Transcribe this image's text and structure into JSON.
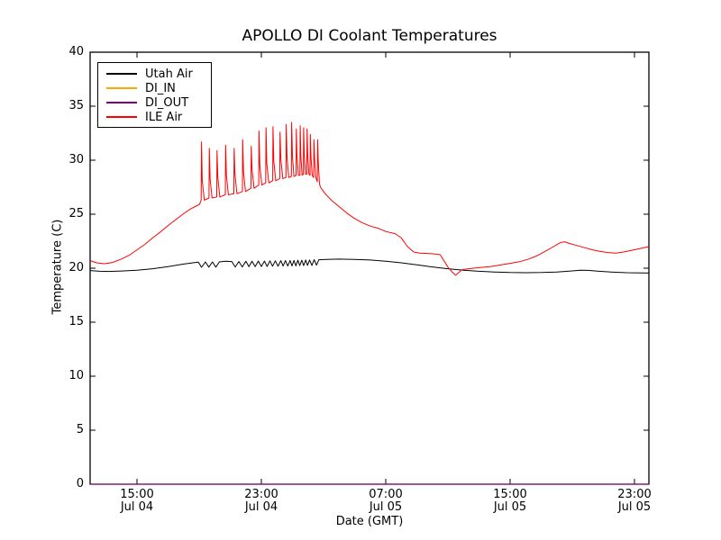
{
  "figure": {
    "background": "#ffffff",
    "spine_color": "#000000"
  },
  "chart_data": {
    "type": "line",
    "title": "APOLLO DI Coolant Temperatures",
    "xlabel": "Date (GMT)",
    "ylabel": "Temperature (C)",
    "ylim": [
      0,
      40
    ],
    "yticks": [
      0,
      5,
      10,
      15,
      20,
      25,
      30,
      35,
      40
    ],
    "x_hours_origin": "Jul 04 00:00 GMT",
    "xlim": [
      11.99,
      47.93
    ],
    "xticks": [
      {
        "t": 15,
        "time": "15:00",
        "date": "Jul 04"
      },
      {
        "t": 23,
        "time": "23:00",
        "date": "Jul 04"
      },
      {
        "t": 31,
        "time": "07:00",
        "date": "Jul 05"
      },
      {
        "t": 39,
        "time": "15:00",
        "date": "Jul 05"
      },
      {
        "t": 47,
        "time": "23:00",
        "date": "Jul 05"
      }
    ],
    "grid": false,
    "legend": {
      "position": "upper-left"
    },
    "series": [
      {
        "name": "Utah Air",
        "color": "#000000",
        "points": [
          [
            11.99,
            19.78
          ],
          [
            12.6,
            19.72
          ],
          [
            13.2,
            19.7
          ],
          [
            14.0,
            19.74
          ],
          [
            15.0,
            19.82
          ],
          [
            16.0,
            19.95
          ],
          [
            17.0,
            20.15
          ],
          [
            18.0,
            20.38
          ],
          [
            18.6,
            20.5
          ],
          [
            18.95,
            20.56
          ],
          [
            19.15,
            20.08
          ],
          [
            19.4,
            20.58
          ],
          [
            19.62,
            20.1
          ],
          [
            19.85,
            20.58
          ],
          [
            20.07,
            20.1
          ],
          [
            20.3,
            20.58
          ],
          [
            20.7,
            20.64
          ],
          [
            21.1,
            20.62
          ],
          [
            21.32,
            20.12
          ],
          [
            21.55,
            20.62
          ],
          [
            21.77,
            20.12
          ],
          [
            22.0,
            20.64
          ],
          [
            22.2,
            20.14
          ],
          [
            22.4,
            20.64
          ],
          [
            22.6,
            20.14
          ],
          [
            22.8,
            20.66
          ],
          [
            23.0,
            20.16
          ],
          [
            23.2,
            20.66
          ],
          [
            23.37,
            20.16
          ],
          [
            23.55,
            20.68
          ],
          [
            23.72,
            20.18
          ],
          [
            23.9,
            20.68
          ],
          [
            24.07,
            20.18
          ],
          [
            24.25,
            20.7
          ],
          [
            24.4,
            20.2
          ],
          [
            24.55,
            20.7
          ],
          [
            24.7,
            20.2
          ],
          [
            24.85,
            20.72
          ],
          [
            24.97,
            20.22
          ],
          [
            25.1,
            20.72
          ],
          [
            25.22,
            20.22
          ],
          [
            25.35,
            20.74
          ],
          [
            25.47,
            20.24
          ],
          [
            25.6,
            20.74
          ],
          [
            25.72,
            20.24
          ],
          [
            25.85,
            20.76
          ],
          [
            25.97,
            20.26
          ],
          [
            26.1,
            20.76
          ],
          [
            26.25,
            20.26
          ],
          [
            26.4,
            20.78
          ],
          [
            26.55,
            20.28
          ],
          [
            26.7,
            20.78
          ],
          [
            27.2,
            20.82
          ],
          [
            28.0,
            20.84
          ],
          [
            29.0,
            20.82
          ],
          [
            30.0,
            20.76
          ],
          [
            31.0,
            20.65
          ],
          [
            32.0,
            20.5
          ],
          [
            33.0,
            20.32
          ],
          [
            34.0,
            20.12
          ],
          [
            35.0,
            19.95
          ],
          [
            36.0,
            19.82
          ],
          [
            37.0,
            19.72
          ],
          [
            38.0,
            19.65
          ],
          [
            39.0,
            19.6
          ],
          [
            40.0,
            19.58
          ],
          [
            41.0,
            19.6
          ],
          [
            42.0,
            19.65
          ],
          [
            43.0,
            19.75
          ],
          [
            43.5,
            19.82
          ],
          [
            44.0,
            19.8
          ],
          [
            44.7,
            19.72
          ],
          [
            45.5,
            19.65
          ],
          [
            46.5,
            19.58
          ],
          [
            47.93,
            19.55
          ]
        ]
      },
      {
        "name": "DI_IN",
        "color": "#ffa500",
        "points": [
          [
            11.99,
            0.0
          ],
          [
            47.93,
            0.0
          ]
        ]
      },
      {
        "name": "DI_OUT",
        "color": "#800080",
        "points": [
          [
            11.99,
            0.0
          ],
          [
            47.93,
            0.0
          ]
        ]
      },
      {
        "name": "ILE Air",
        "color": "#ff0000",
        "points": [
          [
            11.99,
            20.7
          ],
          [
            12.4,
            20.5
          ],
          [
            12.9,
            20.42
          ],
          [
            13.4,
            20.52
          ],
          [
            14.0,
            20.85
          ],
          [
            14.5,
            21.2
          ],
          [
            15.0,
            21.7
          ],
          [
            15.5,
            22.2
          ],
          [
            16.0,
            22.8
          ],
          [
            16.5,
            23.35
          ],
          [
            17.0,
            23.95
          ],
          [
            17.5,
            24.5
          ],
          [
            18.0,
            25.05
          ],
          [
            18.4,
            25.45
          ],
          [
            18.8,
            25.75
          ],
          [
            19.02,
            25.9
          ],
          [
            19.13,
            26.3
          ],
          [
            19.15,
            31.7
          ],
          [
            19.2,
            28.1
          ],
          [
            19.33,
            26.3
          ],
          [
            19.63,
            26.5
          ],
          [
            19.65,
            31.1
          ],
          [
            19.7,
            28.3
          ],
          [
            19.83,
            26.5
          ],
          [
            20.13,
            26.6
          ],
          [
            20.15,
            30.9
          ],
          [
            20.2,
            28.4
          ],
          [
            20.33,
            26.6
          ],
          [
            20.68,
            26.8
          ],
          [
            20.7,
            31.4
          ],
          [
            20.75,
            28.6
          ],
          [
            20.88,
            26.8
          ],
          [
            21.23,
            26.9
          ],
          [
            21.25,
            31.1
          ],
          [
            21.3,
            28.7
          ],
          [
            21.43,
            26.9
          ],
          [
            21.78,
            27.1
          ],
          [
            21.8,
            31.9
          ],
          [
            21.85,
            28.9
          ],
          [
            21.98,
            27.1
          ],
          [
            22.33,
            27.4
          ],
          [
            22.35,
            31.3
          ],
          [
            22.4,
            29.2
          ],
          [
            22.53,
            27.4
          ],
          [
            22.83,
            27.7
          ],
          [
            22.85,
            32.7
          ],
          [
            22.9,
            29.5
          ],
          [
            23.03,
            27.7
          ],
          [
            23.28,
            27.9
          ],
          [
            23.3,
            33.0
          ],
          [
            23.35,
            29.7
          ],
          [
            23.48,
            27.9
          ],
          [
            23.73,
            28.1
          ],
          [
            23.75,
            33.1
          ],
          [
            23.8,
            29.9
          ],
          [
            23.93,
            28.1
          ],
          [
            24.18,
            28.3
          ],
          [
            24.2,
            32.6
          ],
          [
            24.25,
            30.1
          ],
          [
            24.38,
            28.3
          ],
          [
            24.58,
            28.4
          ],
          [
            24.6,
            33.3
          ],
          [
            24.65,
            30.2
          ],
          [
            24.76,
            28.4
          ],
          [
            24.93,
            28.5
          ],
          [
            24.95,
            33.5
          ],
          [
            25.0,
            30.3
          ],
          [
            25.1,
            28.5
          ],
          [
            25.23,
            28.6
          ],
          [
            25.25,
            32.9
          ],
          [
            25.29,
            30.4
          ],
          [
            25.38,
            28.6
          ],
          [
            25.48,
            28.6
          ],
          [
            25.5,
            33.2
          ],
          [
            25.54,
            30.4
          ],
          [
            25.62,
            28.6
          ],
          [
            25.7,
            28.7
          ],
          [
            25.72,
            33.0
          ],
          [
            25.76,
            30.5
          ],
          [
            25.84,
            28.7
          ],
          [
            25.92,
            28.7
          ],
          [
            25.94,
            32.9
          ],
          [
            25.98,
            30.5
          ],
          [
            26.06,
            28.7
          ],
          [
            26.13,
            28.6
          ],
          [
            26.15,
            32.4
          ],
          [
            26.19,
            30.4
          ],
          [
            26.27,
            28.6
          ],
          [
            26.36,
            28.4
          ],
          [
            26.38,
            31.9
          ],
          [
            26.42,
            30.2
          ],
          [
            26.5,
            28.4
          ],
          [
            26.6,
            28.0
          ],
          [
            26.62,
            31.9
          ],
          [
            26.66,
            29.9
          ],
          [
            26.74,
            27.8
          ],
          [
            26.8,
            27.5
          ],
          [
            27.1,
            26.9
          ],
          [
            27.5,
            26.3
          ],
          [
            28.0,
            25.7
          ],
          [
            28.5,
            25.1
          ],
          [
            29.0,
            24.6
          ],
          [
            29.5,
            24.2
          ],
          [
            30.0,
            23.9
          ],
          [
            30.5,
            23.7
          ],
          [
            31.0,
            23.4
          ],
          [
            31.6,
            23.2
          ],
          [
            32.0,
            22.8
          ],
          [
            32.4,
            22.0
          ],
          [
            32.8,
            21.5
          ],
          [
            33.2,
            21.4
          ],
          [
            33.8,
            21.35
          ],
          [
            34.3,
            21.3
          ],
          [
            34.5,
            21.25
          ],
          [
            34.7,
            20.8
          ],
          [
            35.0,
            20.1
          ],
          [
            35.3,
            19.6
          ],
          [
            35.5,
            19.35
          ],
          [
            35.7,
            19.6
          ],
          [
            35.9,
            19.85
          ],
          [
            36.3,
            19.95
          ],
          [
            37.0,
            20.05
          ],
          [
            37.7,
            20.15
          ],
          [
            38.4,
            20.3
          ],
          [
            39.0,
            20.45
          ],
          [
            39.6,
            20.6
          ],
          [
            40.2,
            20.85
          ],
          [
            40.8,
            21.2
          ],
          [
            41.3,
            21.6
          ],
          [
            41.8,
            22.0
          ],
          [
            42.2,
            22.35
          ],
          [
            42.5,
            22.45
          ],
          [
            42.8,
            22.3
          ],
          [
            43.3,
            22.1
          ],
          [
            43.8,
            21.9
          ],
          [
            44.3,
            21.7
          ],
          [
            44.8,
            21.55
          ],
          [
            45.3,
            21.45
          ],
          [
            45.8,
            21.4
          ],
          [
            46.3,
            21.5
          ],
          [
            46.8,
            21.65
          ],
          [
            47.3,
            21.8
          ],
          [
            47.93,
            22.0
          ]
        ]
      }
    ]
  }
}
